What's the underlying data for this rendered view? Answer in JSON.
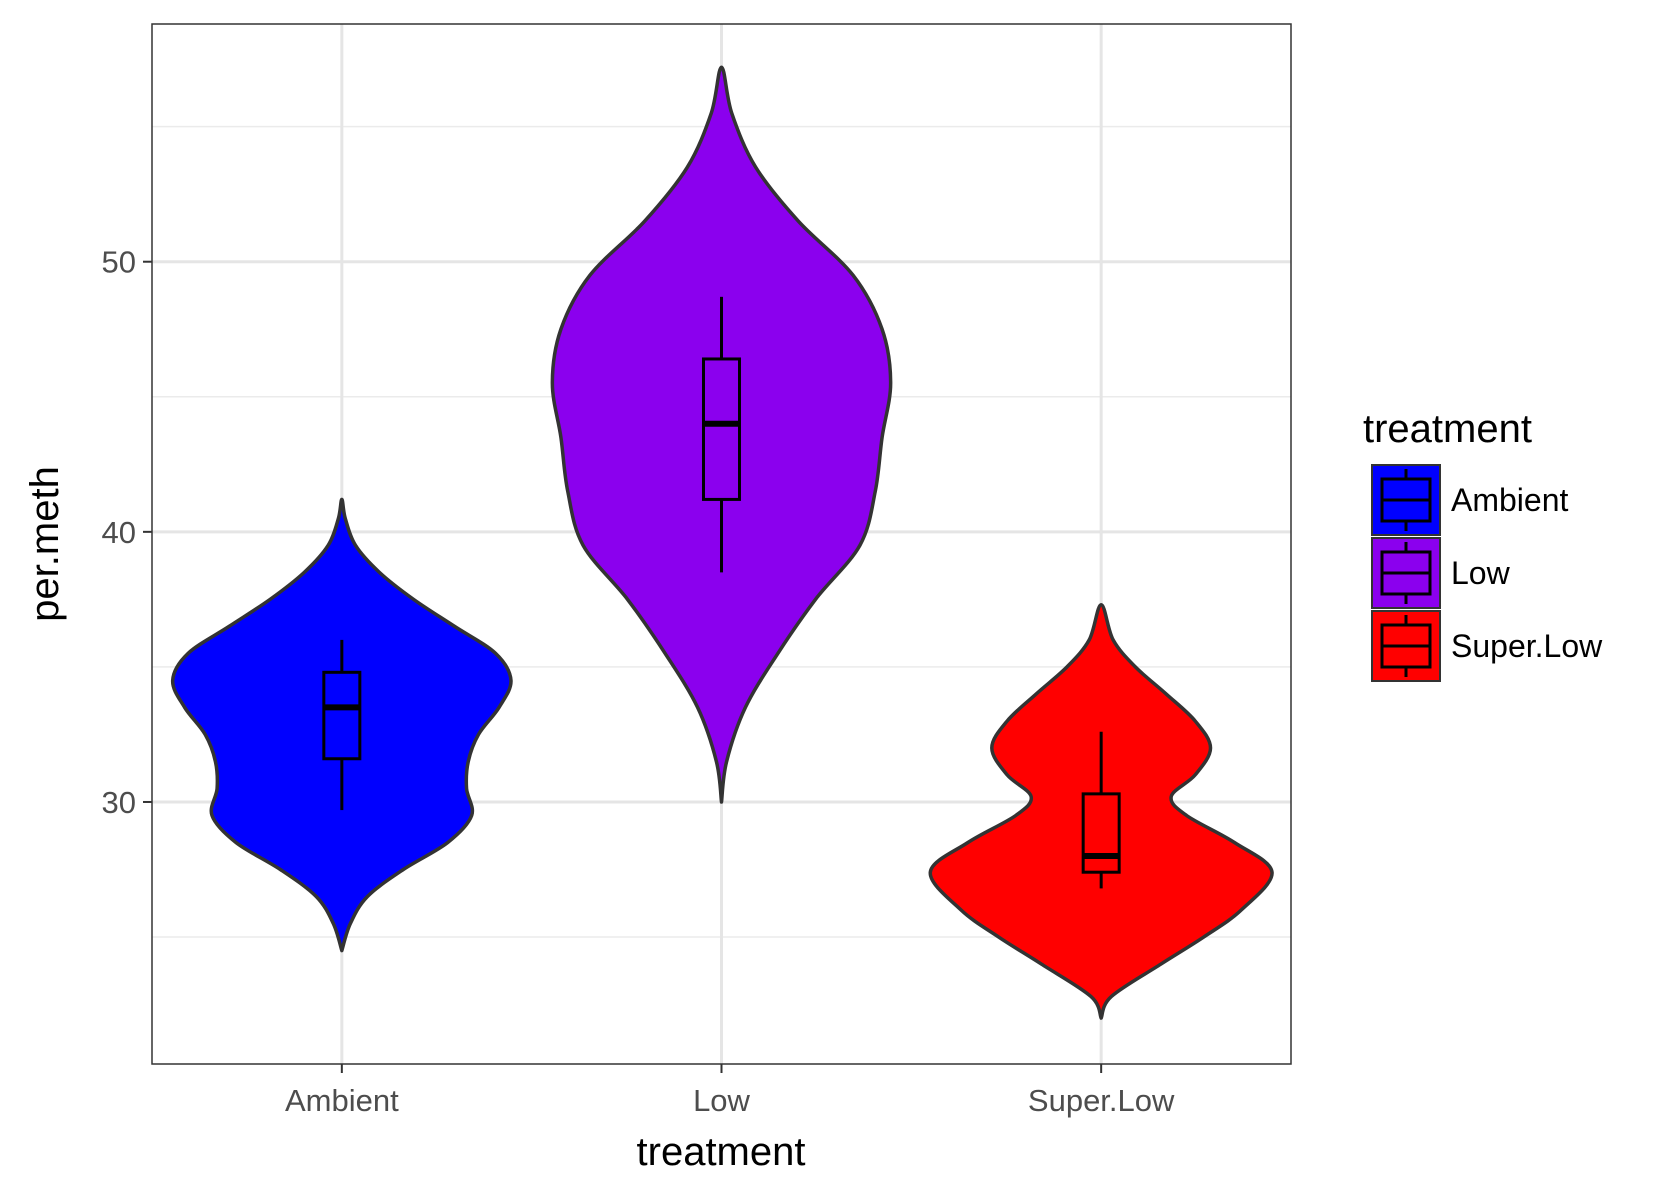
{
  "chart_data": {
    "type": "violin",
    "xlabel": "treatment",
    "ylabel": "per.meth",
    "categories": [
      "Ambient",
      "Low",
      "Super.Low"
    ],
    "ylim": [
      20.3,
      58.8
    ],
    "yticks": [
      30,
      40,
      50
    ],
    "ytick_labels": [
      "30",
      "40",
      "50"
    ],
    "grid": true,
    "legend": {
      "title": "treatment",
      "placement": "right",
      "entries": [
        "Ambient",
        "Low",
        "Super.Low"
      ]
    },
    "series": [
      {
        "name": "Ambient",
        "color": "#0000ff",
        "box": {
          "min": 29.7,
          "q1": 31.6,
          "median": 33.5,
          "q3": 34.8,
          "max": 36.0
        },
        "violin_range": [
          24.5,
          41.2
        ],
        "density": [
          [
            24.5,
            0.0
          ],
          [
            25.5,
            0.05
          ],
          [
            26.5,
            0.15
          ],
          [
            27.5,
            0.36
          ],
          [
            28.5,
            0.62
          ],
          [
            29.5,
            0.76
          ],
          [
            30.5,
            0.73
          ],
          [
            31.5,
            0.74
          ],
          [
            32.5,
            0.8
          ],
          [
            33.5,
            0.92
          ],
          [
            34.5,
            0.99
          ],
          [
            35.5,
            0.9
          ],
          [
            36.5,
            0.66
          ],
          [
            37.5,
            0.42
          ],
          [
            38.5,
            0.22
          ],
          [
            39.5,
            0.08
          ],
          [
            40.5,
            0.02
          ],
          [
            41.2,
            0.0
          ]
        ]
      },
      {
        "name": "Low",
        "color": "#8b00ee",
        "box": {
          "min": 38.5,
          "q1": 41.2,
          "median": 44.0,
          "q3": 46.4,
          "max": 48.7
        },
        "violin_range": [
          30.0,
          57.2
        ],
        "density": [
          [
            30.0,
            0.0
          ],
          [
            31.5,
            0.03
          ],
          [
            33.5,
            0.14
          ],
          [
            35.5,
            0.33
          ],
          [
            37.5,
            0.55
          ],
          [
            39.5,
            0.81
          ],
          [
            41.5,
            0.9
          ],
          [
            43.5,
            0.94
          ],
          [
            45.5,
            0.99
          ],
          [
            47.5,
            0.94
          ],
          [
            49.5,
            0.77
          ],
          [
            51.5,
            0.45
          ],
          [
            53.5,
            0.2
          ],
          [
            55.5,
            0.06
          ],
          [
            57.2,
            0.0
          ]
        ]
      },
      {
        "name": "Super.Low",
        "color": "#ff0000",
        "box": {
          "min": 26.8,
          "q1": 27.4,
          "median": 28.0,
          "q3": 30.3,
          "max": 32.6
        },
        "violin_range": [
          22.0,
          37.3
        ],
        "density": [
          [
            22.0,
            0.0
          ],
          [
            22.8,
            0.06
          ],
          [
            24.0,
            0.35
          ],
          [
            25.0,
            0.6
          ],
          [
            26.0,
            0.82
          ],
          [
            27.4,
            1.0
          ],
          [
            28.5,
            0.78
          ],
          [
            29.5,
            0.5
          ],
          [
            30.2,
            0.41
          ],
          [
            31.0,
            0.55
          ],
          [
            32.0,
            0.64
          ],
          [
            33.0,
            0.55
          ],
          [
            34.0,
            0.38
          ],
          [
            35.0,
            0.2
          ],
          [
            36.0,
            0.07
          ],
          [
            37.3,
            0.0
          ]
        ]
      }
    ]
  }
}
